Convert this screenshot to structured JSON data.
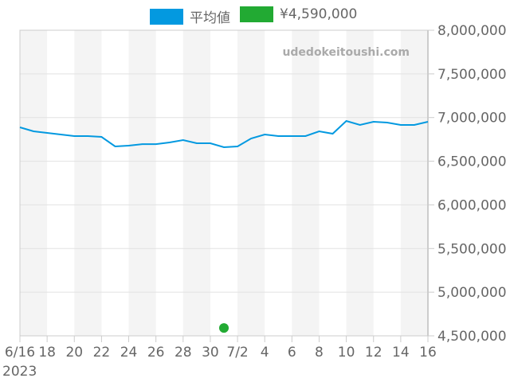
{
  "legend": {
    "series_label": "平均値",
    "series_color": "#0399e0",
    "point_label": "¥4,590,000",
    "point_color": "#22aa33"
  },
  "watermark": "udedokeitoushi.com",
  "chart_data": {
    "type": "line",
    "title": "",
    "xlabel": "",
    "ylabel": "",
    "ylim": [
      4500000,
      8000000
    ],
    "y_axis_position": "right",
    "y_ticks": [
      "8,000,000",
      "7,500,000",
      "7,000,000",
      "6,500,000",
      "6,000,000",
      "5,500,000",
      "5,000,000",
      "4,500,000"
    ],
    "x_ticks": [
      "6/16",
      "18",
      "20",
      "22",
      "24",
      "26",
      "28",
      "30",
      "7/2",
      "4",
      "6",
      "8",
      "10",
      "12",
      "14",
      "16"
    ],
    "x_year_label": "2023",
    "x": [
      "6/16",
      "6/17",
      "6/18",
      "6/19",
      "6/20",
      "6/21",
      "6/22",
      "6/23",
      "6/24",
      "6/25",
      "6/26",
      "6/27",
      "6/28",
      "6/29",
      "6/30",
      "7/1",
      "7/2",
      "7/3",
      "7/4",
      "7/5",
      "7/6",
      "7/7",
      "7/8",
      "7/9",
      "7/10",
      "7/11",
      "7/12",
      "7/13",
      "7/14",
      "7/15",
      "7/16"
    ],
    "series": [
      {
        "name": "平均値",
        "color": "#0399e0",
        "values": [
          6888000,
          6842000,
          6824000,
          6806000,
          6788000,
          6788000,
          6779000,
          6669000,
          6678000,
          6696000,
          6696000,
          6715000,
          6742000,
          6706000,
          6706000,
          6660000,
          6669000,
          6760000,
          6806000,
          6788000,
          6788000,
          6788000,
          6842000,
          6815000,
          6961000,
          6915000,
          6952000,
          6943000,
          6915000,
          6915000,
          6952000
        ]
      },
      {
        "name": "¥4,590,000",
        "color": "#22aa33",
        "type": "scatter",
        "points": [
          {
            "x": "7/1",
            "y": 4590000
          }
        ]
      }
    ],
    "grid": true,
    "legend_position": "top"
  }
}
